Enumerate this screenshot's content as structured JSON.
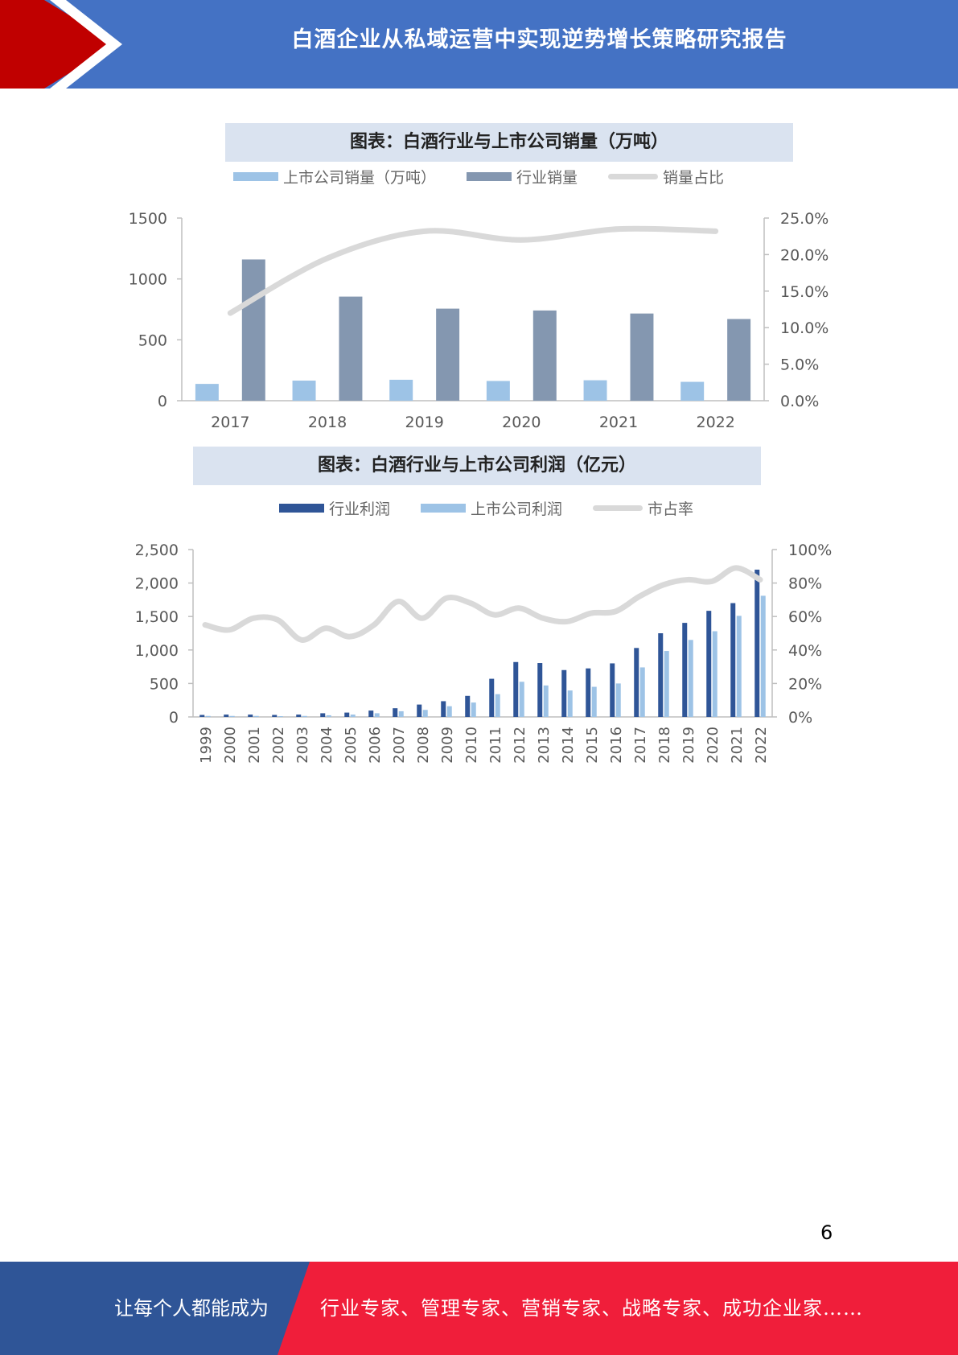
{
  "header": {
    "title": "白酒企业从私域运营中实现逆势增长策略研究报告",
    "accent_color": "#c00000",
    "bg_color": "#4472c4"
  },
  "chart_data": [
    {
      "type": "bar",
      "title": "图表：白酒行业与上市公司销量（万吨）",
      "categories": [
        "2017",
        "2018",
        "2019",
        "2020",
        "2021",
        "2022"
      ],
      "series": [
        {
          "name": "上市公司销量（万吨）",
          "type": "bar",
          "axis": "left",
          "color": "#9dc3e6",
          "values": [
            138,
            165,
            172,
            162,
            168,
            155
          ]
        },
        {
          "name": "行业销量",
          "type": "bar",
          "axis": "left",
          "color": "#8497b0",
          "values": [
            1160,
            855,
            756,
            741,
            716,
            671
          ]
        },
        {
          "name": "销量占比",
          "type": "line",
          "axis": "right",
          "color": "#d9d9d9",
          "values": [
            12.0,
            19.5,
            23.2,
            22.0,
            23.5,
            23.2
          ]
        }
      ],
      "ylim": [
        0,
        1500
      ],
      "yticks": [
        "0",
        "500",
        "1000",
        "1500"
      ],
      "y2lim": [
        0,
        25
      ],
      "y2ticks": [
        "0.0%",
        "5.0%",
        "10.0%",
        "15.0%",
        "20.0%",
        "25.0%"
      ],
      "legend": "top"
    },
    {
      "type": "bar",
      "title": "图表：白酒行业与上市公司利润（亿元）",
      "categories": [
        "1999",
        "2000",
        "2001",
        "2002",
        "2003",
        "2004",
        "2005",
        "2006",
        "2007",
        "2008",
        "2009",
        "2010",
        "2011",
        "2012",
        "2013",
        "2014",
        "2015",
        "2016",
        "2017",
        "2018",
        "2019",
        "2020",
        "2021",
        "2022"
      ],
      "series": [
        {
          "name": "行业利润",
          "type": "bar",
          "axis": "left",
          "color": "#2f5597",
          "values": [
            30,
            35,
            35,
            30,
            35,
            55,
            65,
            95,
            130,
            185,
            235,
            315,
            570,
            820,
            805,
            700,
            725,
            800,
            1030,
            1250,
            1405,
            1585,
            1700,
            2200
          ]
        },
        {
          "name": "上市公司利润",
          "type": "bar",
          "axis": "left",
          "color": "#9dc3e6",
          "values": [
            15,
            15,
            15,
            12,
            15,
            25,
            35,
            55,
            85,
            105,
            160,
            215,
            340,
            525,
            470,
            395,
            450,
            500,
            740,
            985,
            1150,
            1280,
            1510,
            1810
          ]
        },
        {
          "name": "市占率",
          "type": "line",
          "axis": "right",
          "color": "#d9d9d9",
          "values": [
            55,
            52,
            59,
            58,
            46,
            53,
            48,
            55,
            69,
            59,
            71,
            68,
            61,
            65,
            59,
            57,
            62,
            63,
            72,
            79,
            82,
            81,
            89,
            82
          ]
        }
      ],
      "ylim": [
        0,
        2500
      ],
      "yticks": [
        "0",
        "500",
        "1,000",
        "1,500",
        "2,000",
        "2,500"
      ],
      "y2lim": [
        0,
        100
      ],
      "y2ticks": [
        "0%",
        "20%",
        "40%",
        "60%",
        "80%",
        "100%"
      ],
      "legend": "top"
    }
  ],
  "page_number": "6",
  "footer": {
    "left_text": "让每个人都能成为",
    "right_text": "行业专家、管理专家、营销专家、战略专家、成功企业家……",
    "left_color": "#2f5597",
    "right_color": "#f01e3a"
  }
}
